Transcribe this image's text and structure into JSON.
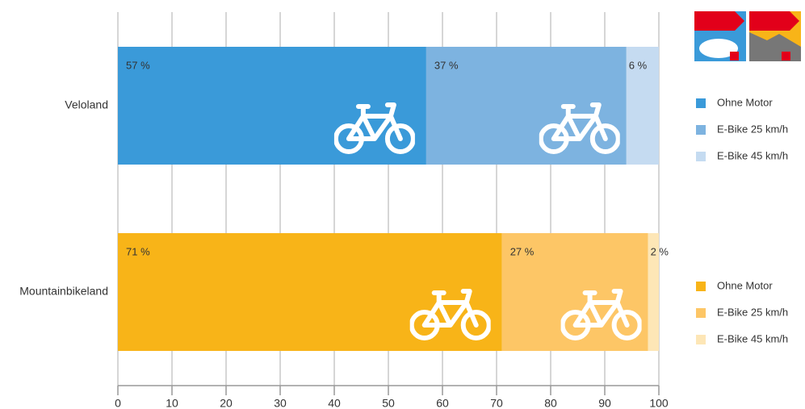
{
  "chart_data": {
    "type": "stacked-barh",
    "categories": [
      "Veloland",
      "Mountainbikeland"
    ],
    "series": [
      {
        "name": "Ohne Motor",
        "colors": [
          "#3a9ad9",
          "#f8b418"
        ],
        "values": [
          57,
          71
        ],
        "value_labels": [
          "57 %",
          "71 %"
        ]
      },
      {
        "name": "E-Bike 25 km/h",
        "colors": [
          "#7db3e0",
          "#fdc666"
        ],
        "values": [
          37,
          27
        ],
        "value_labels": [
          "37 %",
          "27 %"
        ]
      },
      {
        "name": "E-Bike 45 km/h",
        "colors": [
          "#c5dbf1",
          "#fde6b6"
        ],
        "values": [
          6,
          2
        ],
        "value_labels": [
          "6 %",
          "2 %"
        ]
      }
    ],
    "xlim": [
      0,
      100
    ],
    "xticks": [
      0,
      10,
      20,
      30,
      40,
      50,
      60,
      70,
      80,
      90,
      100
    ],
    "grid": true
  }
}
